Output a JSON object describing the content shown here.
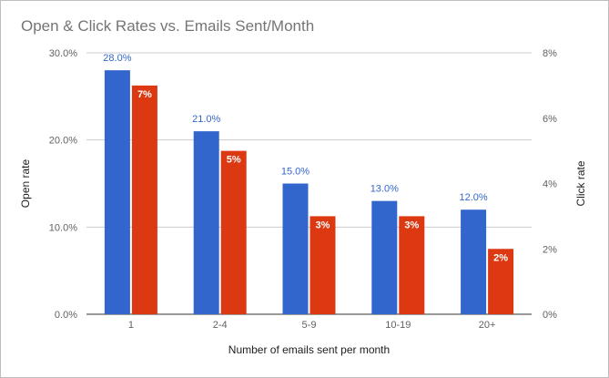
{
  "chart_data": {
    "type": "bar",
    "title": "Open & Click Rates vs. Emails Sent/Month",
    "xlabel": "Number of emails sent per month",
    "ylabel_left": "Open rate",
    "ylabel_right": "Click rate",
    "categories": [
      "1",
      "2-4",
      "5-9",
      "10-19",
      "20+"
    ],
    "series": [
      {
        "axis": "left",
        "color": "#3366cc",
        "values": [
          28.0,
          21.0,
          15.0,
          13.0,
          12.0
        ],
        "labels": [
          "28.0%",
          "21.0%",
          "15.0%",
          "13.0%",
          "12.0%"
        ]
      },
      {
        "axis": "right",
        "color": "#dc3912",
        "values": [
          7.0,
          5.0,
          3.0,
          3.0,
          2.0
        ],
        "labels": [
          "7%",
          "5%",
          "3%",
          "3%",
          "2%"
        ]
      }
    ],
    "left_axis": {
      "ylim": [
        0,
        30
      ],
      "ticks": [
        0,
        10,
        20,
        30
      ],
      "tick_labels": [
        "0.0%",
        "10.0%",
        "20.0%",
        "30.0%"
      ]
    },
    "right_axis": {
      "ylim": [
        0,
        8
      ],
      "ticks": [
        0,
        2,
        4,
        6,
        8
      ],
      "tick_labels": [
        "0%",
        "2%",
        "4%",
        "6%",
        "8%"
      ]
    },
    "grid": true
  }
}
